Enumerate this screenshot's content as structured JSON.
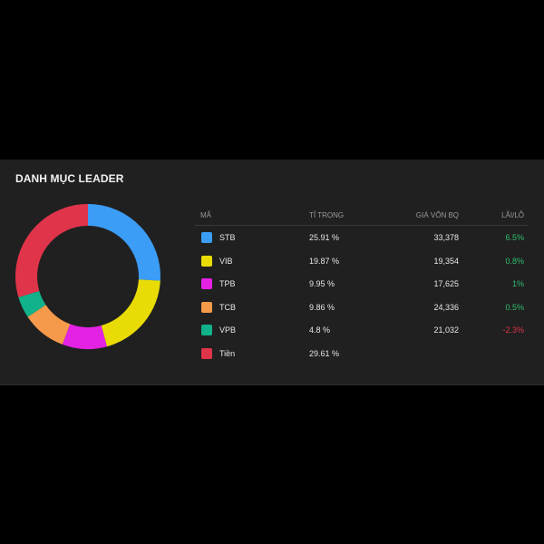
{
  "title": "DANH MỤC LEADER",
  "table": {
    "headers": {
      "code": "MÃ",
      "weight": "TỈ TRỌNG",
      "price": "GIÁ VỐN BQ",
      "pl": "LÃI/LỖ"
    },
    "rows": [
      {
        "code": "STB",
        "weight": "25.91  %",
        "price": "33,378",
        "pl": "6.5%",
        "color": "#3b9df6",
        "pl_color": "#2fbf71"
      },
      {
        "code": "VIB",
        "weight": "19.87  %",
        "price": "19,354",
        "pl": "0.8%",
        "color": "#e9dc06",
        "pl_color": "#2fbf71"
      },
      {
        "code": "TPB",
        "weight": "9.95  %",
        "price": "17,625",
        "pl": "1%",
        "color": "#e322e3",
        "pl_color": "#2fbf71"
      },
      {
        "code": "TCB",
        "weight": "9.86  %",
        "price": "24,336",
        "pl": "0.5%",
        "color": "#f59a4a",
        "pl_color": "#2fbf71"
      },
      {
        "code": "VPB",
        "weight": "4.8  %",
        "price": "21,032",
        "pl": "-2.3%",
        "color": "#11b28b",
        "pl_color": "#e0344a"
      },
      {
        "code": "Tiền",
        "weight": "29.61  %",
        "price": "",
        "pl": "",
        "color": "#e0344a",
        "pl_color": "#2fbf71"
      }
    ]
  },
  "chart_data": {
    "type": "pie",
    "donut": true,
    "categories": [
      "STB",
      "VIB",
      "TPB",
      "TCB",
      "VPB",
      "Tiền"
    ],
    "values": [
      25.91,
      19.87,
      9.95,
      9.86,
      4.8,
      29.61
    ],
    "colors": [
      "#3b9df6",
      "#e9dc06",
      "#e322e3",
      "#f59a4a",
      "#11b28b",
      "#e0344a"
    ],
    "start": "top",
    "direction": "clockwise",
    "unit": "%"
  }
}
